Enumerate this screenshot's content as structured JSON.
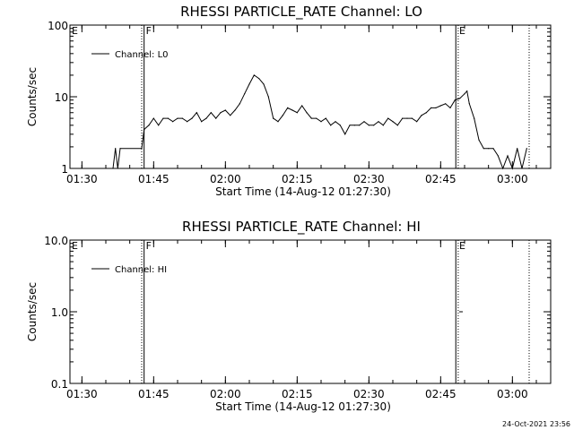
{
  "timestamp": "24-Oct-2021 23:56",
  "chart_data": [
    {
      "type": "line",
      "title": "RHESSI PARTICLE_RATE Channel: LO",
      "xlabel": "Start Time (14-Aug-12 01:27:30)",
      "ylabel": "Counts/sec",
      "yscale": "log",
      "xlim": [
        "01:27:30",
        "03:08:00"
      ],
      "ylim": [
        1,
        100
      ],
      "x_ticks": [
        "01:30",
        "01:45",
        "02:00",
        "02:15",
        "02:30",
        "02:45",
        "03:00"
      ],
      "y_ticks": [
        "1",
        "10",
        "100"
      ],
      "flags": [
        {
          "label": "E",
          "time": "01:27:30"
        },
        {
          "label": "F",
          "time": "01:43:00"
        },
        {
          "label": "E",
          "time": "02:48:30"
        }
      ],
      "markers": [
        {
          "time": "01:42:30",
          "style": "dotted"
        },
        {
          "time": "01:43:00",
          "style": "solid"
        },
        {
          "time": "02:48:10",
          "style": "solid"
        },
        {
          "time": "02:48:40",
          "style": "dotted"
        },
        {
          "time": "03:03:30",
          "style": "dotted"
        }
      ],
      "legend": {
        "position": "top-left",
        "entries": [
          "Channel: L0"
        ]
      },
      "series": [
        {
          "name": "Channel: L0",
          "x": [
            "01:36:30",
            "01:37:00",
            "01:37:30",
            "01:38:00",
            "01:42:30",
            "01:43:00",
            "01:44:00",
            "01:45:00",
            "01:46:00",
            "01:47:00",
            "01:48:00",
            "01:49:00",
            "01:50:00",
            "01:51:00",
            "01:52:00",
            "01:53:00",
            "01:54:00",
            "01:55:00",
            "01:56:00",
            "01:57:00",
            "01:58:00",
            "01:59:00",
            "02:00:00",
            "02:01:00",
            "02:02:00",
            "02:03:00",
            "02:04:00",
            "02:05:00",
            "02:06:00",
            "02:07:00",
            "02:08:00",
            "02:09:00",
            "02:10:00",
            "02:11:00",
            "02:12:00",
            "02:13:00",
            "02:14:00",
            "02:15:00",
            "02:16:00",
            "02:17:00",
            "02:18:00",
            "02:19:00",
            "02:20:00",
            "02:21:00",
            "02:22:00",
            "02:23:00",
            "02:24:00",
            "02:25:00",
            "02:26:00",
            "02:27:00",
            "02:28:00",
            "02:29:00",
            "02:30:00",
            "02:31:00",
            "02:32:00",
            "02:33:00",
            "02:34:00",
            "02:35:00",
            "02:36:00",
            "02:37:00",
            "02:38:00",
            "02:39:00",
            "02:40:00",
            "02:41:00",
            "02:42:00",
            "02:43:00",
            "02:44:00",
            "02:45:00",
            "02:46:00",
            "02:47:00",
            "02:48:00",
            "02:49:00",
            "02:50:00",
            "02:50:30",
            "02:51:00",
            "02:52:00",
            "02:53:00",
            "02:54:00",
            "02:55:00",
            "02:56:00",
            "02:57:00",
            "02:58:00",
            "02:59:00",
            "03:00:00",
            "03:01:00",
            "03:02:00",
            "03:03:00"
          ],
          "values": [
            1,
            1.9,
            1,
            1.9,
            1.9,
            3.5,
            4,
            5,
            4,
            5,
            5,
            4.5,
            5,
            5,
            4.5,
            5,
            6,
            4.5,
            5,
            6,
            5,
            6,
            6.5,
            5.5,
            6.5,
            8,
            11,
            15,
            20,
            18,
            15,
            10,
            5,
            4.5,
            5.5,
            7,
            6.5,
            6,
            7.5,
            6,
            5,
            5,
            4.5,
            5,
            4,
            4.5,
            4,
            3,
            4,
            4,
            4,
            4.5,
            4,
            4,
            4.5,
            4,
            5,
            4.5,
            4,
            5,
            5,
            5,
            4.5,
            5.5,
            6,
            7,
            7,
            7.5,
            8,
            7,
            9,
            9.5,
            11,
            12,
            8,
            5,
            2.5,
            1.9,
            1.9,
            1.9,
            1.5,
            1,
            1.5,
            1,
            1.9,
            1,
            1.9
          ]
        }
      ]
    },
    {
      "type": "line",
      "title": "RHESSI PARTICLE_RATE Channel: HI",
      "xlabel": "Start Time (14-Aug-12 01:27:30)",
      "ylabel": "Counts/sec",
      "yscale": "log",
      "xlim": [
        "01:27:30",
        "03:08:00"
      ],
      "ylim": [
        0.1,
        10
      ],
      "x_ticks": [
        "01:30",
        "01:45",
        "02:00",
        "02:15",
        "02:30",
        "02:45",
        "03:00"
      ],
      "y_ticks": [
        "0.1",
        "1.0",
        "10.0"
      ],
      "flags": [
        {
          "label": "E",
          "time": "01:27:30"
        },
        {
          "label": "F",
          "time": "01:43:00"
        },
        {
          "label": "E",
          "time": "02:48:30"
        }
      ],
      "markers": [
        {
          "time": "01:42:30",
          "style": "dotted"
        },
        {
          "time": "01:43:00",
          "style": "solid"
        },
        {
          "time": "02:48:10",
          "style": "solid"
        },
        {
          "time": "02:48:40",
          "style": "dotted"
        },
        {
          "time": "03:03:30",
          "style": "dotted"
        }
      ],
      "legend": {
        "position": "top-left",
        "entries": [
          "Channel: HI"
        ]
      },
      "series": [
        {
          "name": "Channel: HI",
          "x": [
            "02:49:00",
            "02:49:30"
          ],
          "values": [
            1,
            1
          ]
        }
      ]
    }
  ]
}
